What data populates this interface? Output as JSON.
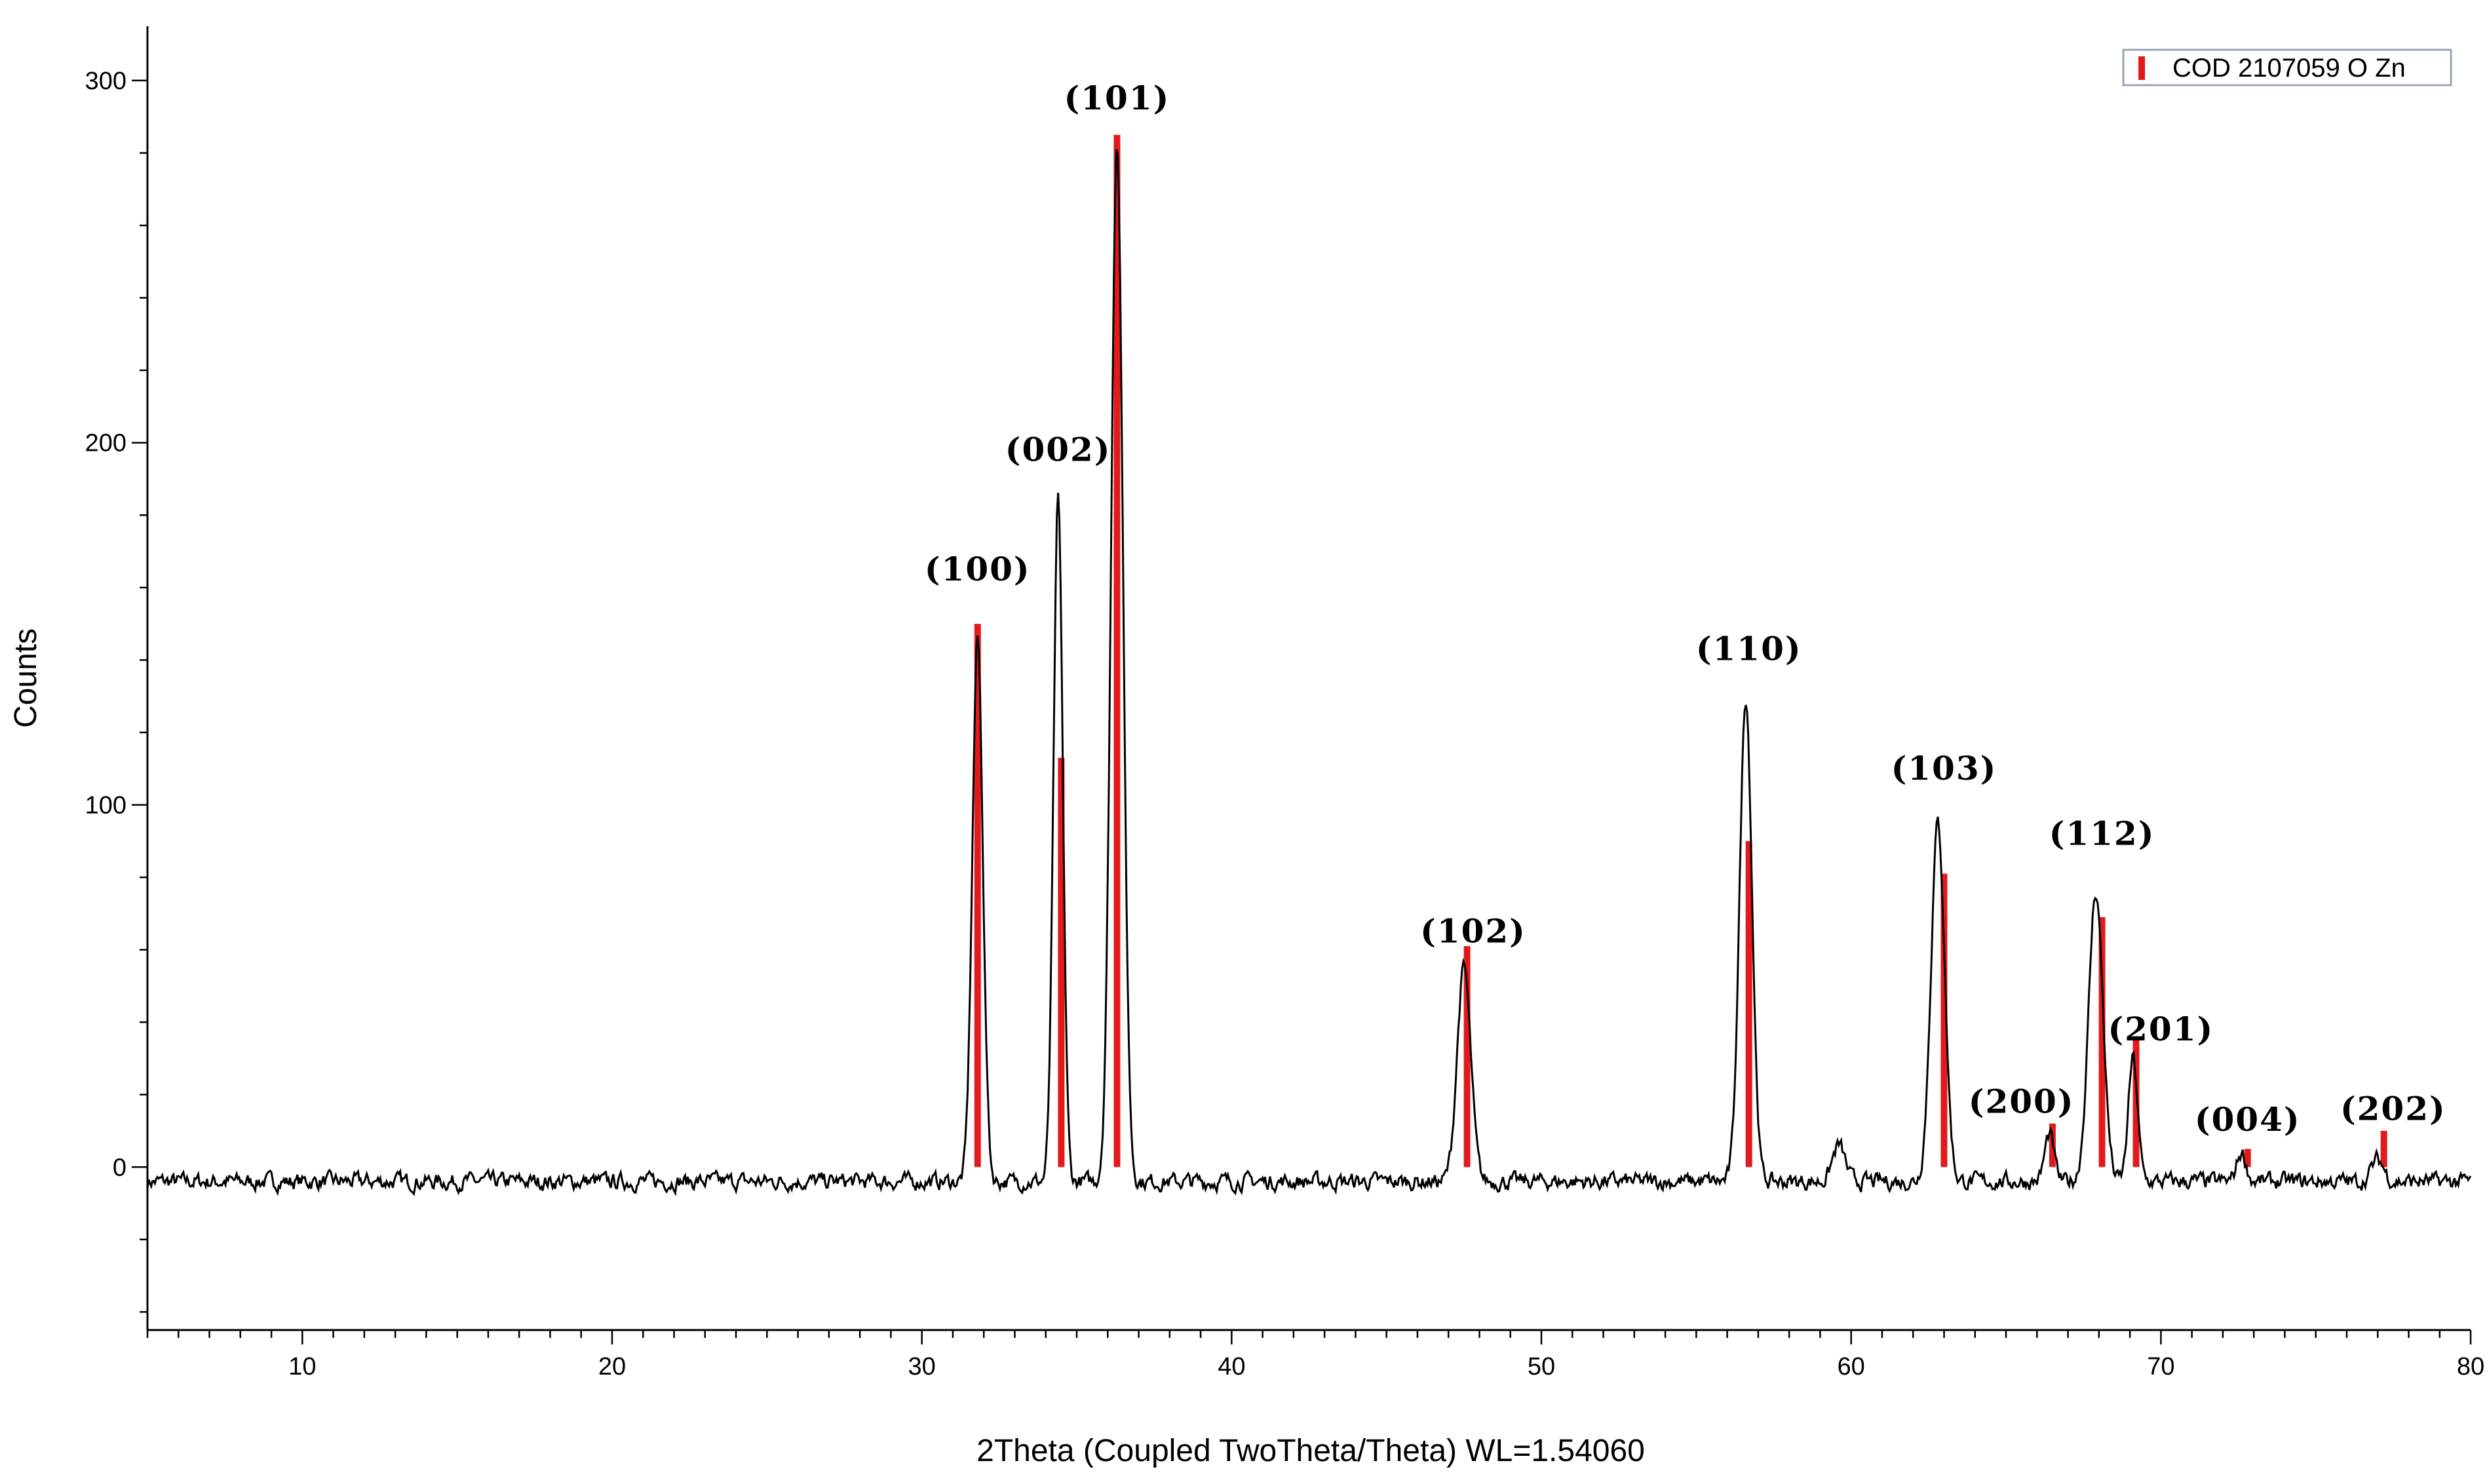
{
  "chart_data": {
    "type": "line",
    "title": "",
    "xlabel": "2Theta (Coupled TwoTheta/Theta) WL=1.54060",
    "ylabel": "Counts",
    "xlim": [
      5,
      80
    ],
    "ylim": [
      -45,
      315
    ],
    "x_ticks": [
      10,
      20,
      30,
      40,
      50,
      60,
      70,
      80
    ],
    "y_ticks": [
      0,
      100,
      200,
      300
    ],
    "grid": false,
    "legend": {
      "placement": "top-right",
      "entries": [
        {
          "label": "COD 2107059 O Zn",
          "color": "#e31a1c"
        }
      ]
    },
    "series": [
      {
        "color": "#000000",
        "baseline": -4,
        "noise_amplitude": 4,
        "peaks": [
          {
            "x": 31.8,
            "y": 150,
            "width": 0.17
          },
          {
            "x": 34.4,
            "y": 188,
            "width": 0.15
          },
          {
            "x": 36.3,
            "y": 288,
            "width": 0.19
          },
          {
            "x": 47.5,
            "y": 59,
            "width": 0.22
          },
          {
            "x": 56.6,
            "y": 134,
            "width": 0.2
          },
          {
            "x": 62.8,
            "y": 99,
            "width": 0.22
          },
          {
            "x": 66.4,
            "y": 13,
            "width": 0.15
          },
          {
            "x": 67.9,
            "y": 80,
            "width": 0.23
          },
          {
            "x": 69.1,
            "y": 34,
            "width": 0.15
          },
          {
            "x": 72.6,
            "y": 8,
            "width": 0.15
          },
          {
            "x": 77.0,
            "y": 6,
            "width": 0.2
          },
          {
            "x": 59.6,
            "y": 10,
            "width": 0.2
          }
        ]
      }
    ],
    "reference_lines": {
      "name": "COD 2107059 O Zn",
      "color": "#e31a1c",
      "x": [
        31.8,
        34.5,
        36.3,
        47.6,
        56.7,
        63.0,
        66.5,
        68.1,
        69.2,
        72.8,
        77.2
      ],
      "y": [
        150,
        113,
        285,
        61,
        90,
        81,
        12,
        69,
        35,
        5,
        10
      ]
    },
    "annotations": [
      {
        "text": "(100)",
        "x": 31.8,
        "y": 162
      },
      {
        "text": "(002)",
        "x": 34.4,
        "y": 195
      },
      {
        "text": "(101)",
        "x": 36.3,
        "y": 292
      },
      {
        "text": "(102)",
        "x": 47.8,
        "y": 62
      },
      {
        "text": "(110)",
        "x": 56.7,
        "y": 140
      },
      {
        "text": "(103)",
        "x": 63.0,
        "y": 107
      },
      {
        "text": "(200)",
        "x": 65.5,
        "y": 15
      },
      {
        "text": "(112)",
        "x": 68.1,
        "y": 89
      },
      {
        "text": "(201)",
        "x": 70.0,
        "y": 35
      },
      {
        "text": "(004)",
        "x": 72.8,
        "y": 10
      },
      {
        "text": "(202)",
        "x": 77.5,
        "y": 13
      }
    ]
  }
}
